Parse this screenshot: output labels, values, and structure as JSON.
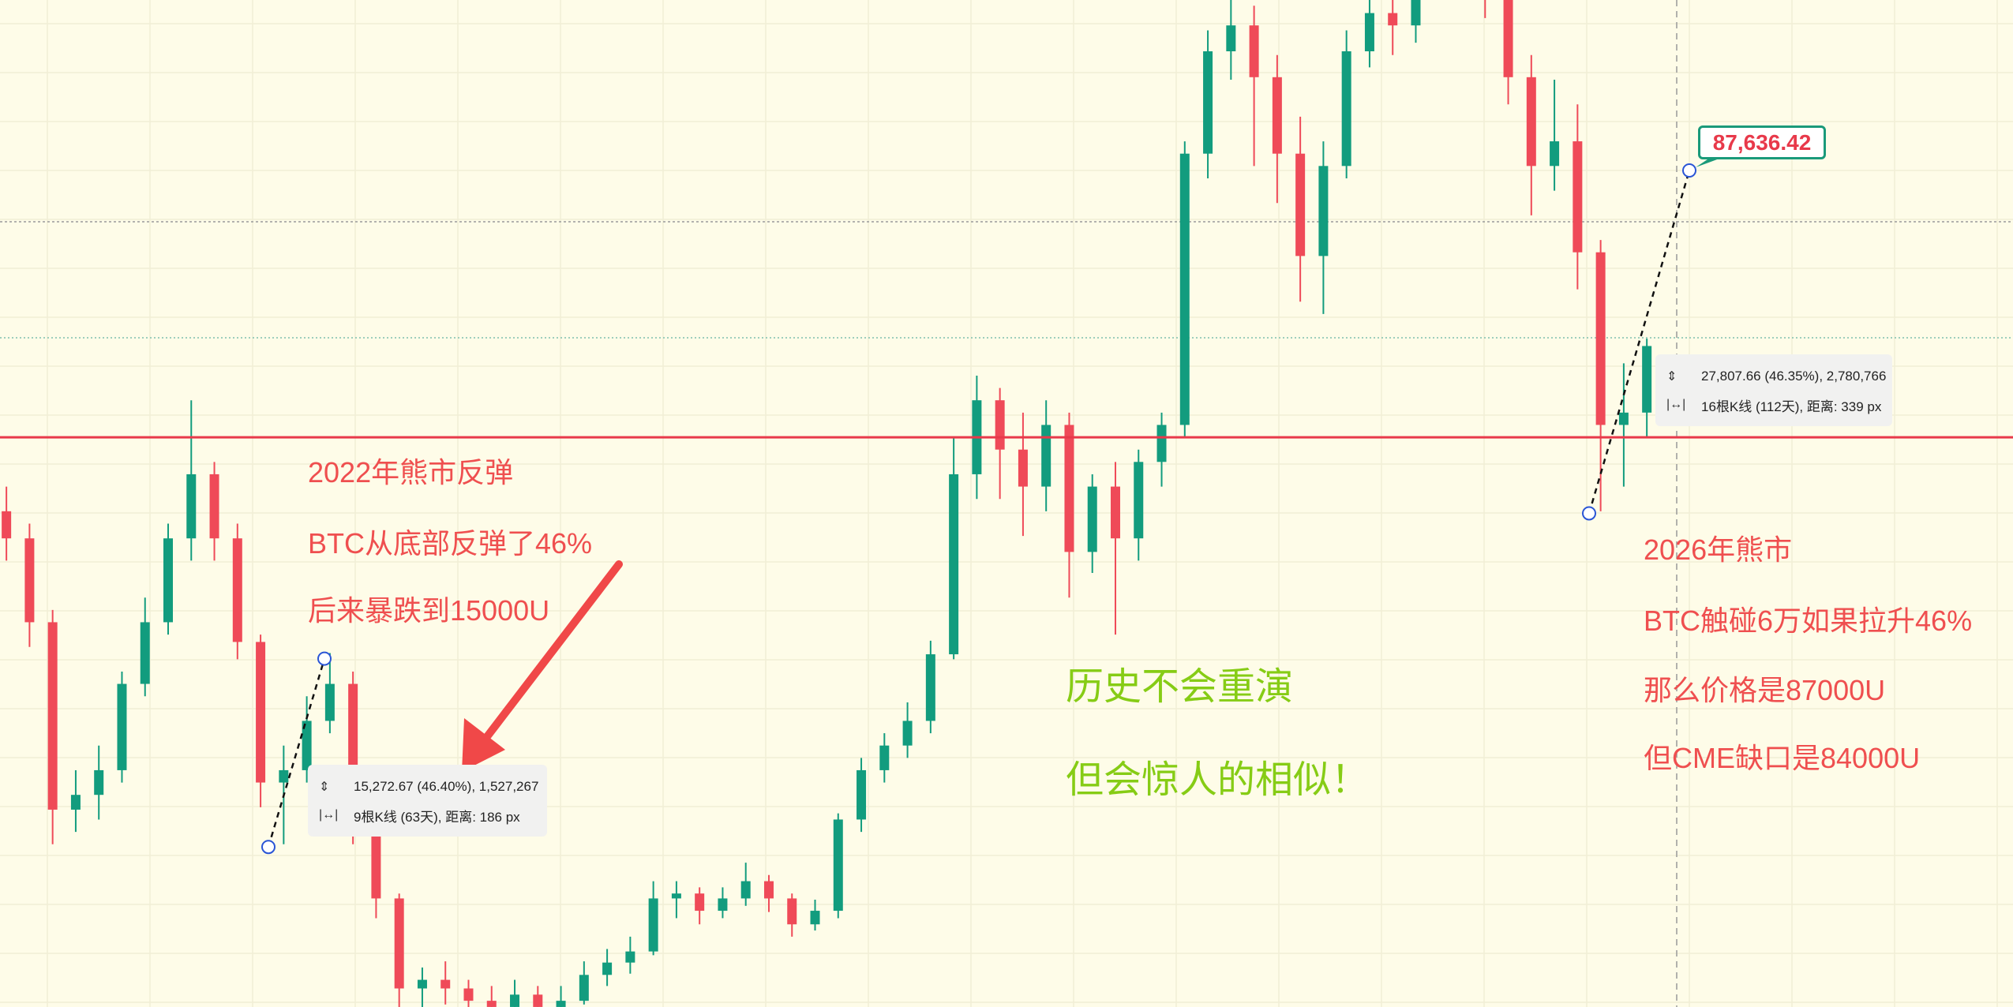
{
  "chart_data": {
    "type": "candlestick",
    "colors": {
      "up": "#129c7e",
      "down": "#ef4a58",
      "background": "#fefce8",
      "level_line": "#e8394a",
      "annotation_red": "#ef4f4f",
      "annotation_green": "#86cc15"
    },
    "grid": true,
    "horizontal_level": 66000,
    "candles": [
      [
        60000,
        62000,
        56000,
        57800
      ],
      [
        57800,
        59000,
        49000,
        51000
      ],
      [
        51000,
        52000,
        33000,
        35800
      ],
      [
        35800,
        39000,
        34000,
        37000
      ],
      [
        37000,
        41000,
        35000,
        39000
      ],
      [
        39000,
        47000,
        38000,
        46000
      ],
      [
        46000,
        53000,
        45000,
        51000
      ],
      [
        51000,
        59000,
        50000,
        57800
      ],
      [
        57800,
        69000,
        56000,
        63000
      ],
      [
        63000,
        64000,
        56000,
        57800
      ],
      [
        57800,
        59000,
        48000,
        49400
      ],
      [
        49400,
        50000,
        36000,
        38000
      ],
      [
        38000,
        41000,
        33000,
        39000
      ],
      [
        39000,
        45000,
        38000,
        43000
      ],
      [
        43000,
        48500,
        42000,
        46000
      ],
      [
        46000,
        47000,
        33000,
        35000
      ],
      [
        35000,
        36000,
        27000,
        28600
      ],
      [
        28600,
        29000,
        19000,
        21300
      ],
      [
        21300,
        23000,
        19500,
        22000
      ],
      [
        22000,
        23500,
        20000,
        21300
      ],
      [
        21300,
        22000,
        19000,
        20300
      ],
      [
        20300,
        21500,
        19000,
        19800
      ],
      [
        19800,
        22000,
        19000,
        20800
      ],
      [
        20800,
        21500,
        18800,
        19800
      ],
      [
        19800,
        21500,
        19000,
        20300
      ],
      [
        20300,
        23500,
        20000,
        22400
      ],
      [
        22400,
        24500,
        21500,
        23400
      ],
      [
        23400,
        25500,
        22500,
        24300
      ],
      [
        24300,
        30000,
        24000,
        28600
      ],
      [
        28600,
        30000,
        27000,
        29000
      ],
      [
        29000,
        29500,
        26500,
        27600
      ],
      [
        27600,
        29500,
        27000,
        28600
      ],
      [
        28600,
        31500,
        28000,
        30000
      ],
      [
        30000,
        30500,
        27500,
        28600
      ],
      [
        28600,
        29000,
        25500,
        26500
      ],
      [
        26500,
        28500,
        26000,
        27600
      ],
      [
        27600,
        35500,
        27000,
        35000
      ],
      [
        35000,
        40000,
        34000,
        39000
      ],
      [
        39000,
        42000,
        38000,
        41000
      ],
      [
        41000,
        44500,
        40000,
        43000
      ],
      [
        43000,
        49500,
        42000,
        48400
      ],
      [
        48400,
        66000,
        48000,
        63000
      ],
      [
        63000,
        71000,
        61000,
        69000
      ],
      [
        69000,
        70000,
        61000,
        65000
      ],
      [
        65000,
        68000,
        58000,
        62000
      ],
      [
        62000,
        69000,
        60000,
        67000
      ],
      [
        67000,
        68000,
        53000,
        56700
      ],
      [
        56700,
        63000,
        55000,
        62000
      ],
      [
        62000,
        64000,
        50000,
        57800
      ],
      [
        57800,
        65000,
        56000,
        64000
      ],
      [
        64000,
        68000,
        62000,
        67000
      ],
      [
        67000,
        90000,
        66000,
        89000
      ],
      [
        89000,
        99000,
        87000,
        97300
      ],
      [
        97300,
        104000,
        95000,
        99400
      ],
      [
        99400,
        101000,
        88000,
        95200
      ],
      [
        95200,
        97000,
        85000,
        89000
      ],
      [
        89000,
        92000,
        77000,
        80700
      ],
      [
        80700,
        90000,
        76000,
        88000
      ],
      [
        88000,
        99000,
        87000,
        97300
      ],
      [
        97300,
        104000,
        96000,
        100400
      ],
      [
        100400,
        103000,
        97000,
        99400
      ],
      [
        99400,
        107000,
        98000,
        105000
      ],
      [
        105000,
        110000,
        103000,
        108000
      ],
      [
        108000,
        109000,
        102000,
        106000
      ],
      [
        106000,
        107000,
        100000,
        103000
      ],
      [
        103000,
        104000,
        93000,
        95200
      ],
      [
        95200,
        97000,
        84000,
        88000
      ],
      [
        88000,
        95000,
        86000,
        90000
      ],
      [
        90000,
        93000,
        78000,
        81000
      ],
      [
        81000,
        82000,
        60000,
        67000
      ],
      [
        67000,
        72000,
        62000,
        68000
      ],
      [
        68000,
        74000,
        66000,
        73400
      ]
    ],
    "measure_left": {
      "from_price": 32775,
      "to_price": 48048,
      "line1": "15,272.67 (46.40%), 1,527,267",
      "line2": "9根K线 (63天), 距离: 186 px"
    },
    "measure_right": {
      "from_price": 59829,
      "to_price": 87636,
      "line1": "27,807.66 (46.35%), 2,780,766",
      "line2": "16根K线 (112天), 距离: 339 px"
    },
    "price_label": "87,636.42",
    "annotations": {
      "left": [
        "2022年熊市反弹",
        "BTC从底部反弹了46%",
        "后来暴跌到15000U"
      ],
      "middle": [
        "历史不会重演",
        "但会惊人的相似！"
      ],
      "right": [
        "2026年熊市",
        "BTC触碰6万如果拉升46%",
        "那么价格是87000U",
        "但CME缺口是84000U"
      ]
    }
  }
}
